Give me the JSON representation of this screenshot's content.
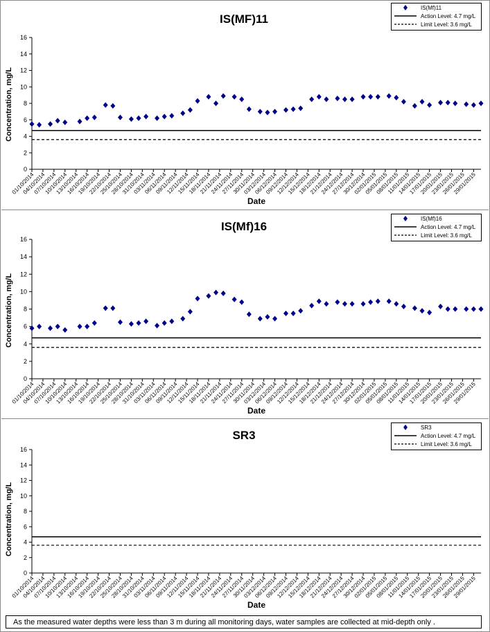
{
  "chart_data": [
    {
      "type": "scatter",
      "title": "IS(MF)11",
      "xlabel": "Date",
      "ylabel": "Concentration, mg/L",
      "ylim": [
        0,
        16
      ],
      "yticks": [
        0,
        2,
        4,
        6,
        8,
        10,
        12,
        14,
        16
      ],
      "xlim": [
        "2014-10-01",
        "2015-01-31"
      ],
      "xticks": [
        "01/10/2014",
        "04/10/2014",
        "07/10/2014",
        "10/10/2014",
        "13/10/2014",
        "16/10/2014",
        "19/10/2014",
        "22/10/2014",
        "25/10/2014",
        "28/10/2014",
        "31/10/2014",
        "03/11/2014",
        "06/11/2014",
        "09/11/2014",
        "12/11/2014",
        "15/11/2014",
        "18/11/2014",
        "21/11/2014",
        "24/11/2014",
        "27/11/2014",
        "30/11/2014",
        "03/12/2014",
        "06/12/2014",
        "09/12/2014",
        "12/12/2014",
        "15/12/2014",
        "18/12/2014",
        "21/12/2014",
        "24/12/2014",
        "27/12/2014",
        "30/12/2014",
        "02/01/2015",
        "05/01/2015",
        "08/01/2015",
        "11/01/2015",
        "14/01/2015",
        "17/01/2015",
        "20/01/2015",
        "23/01/2015",
        "26/01/2015",
        "29/01/2015"
      ],
      "grid": false,
      "legend_position": "top-right",
      "series": [
        {
          "name": "IS(Mf)11",
          "marker": "diamond",
          "color": "#00008B",
          "x": [
            "2014-10-01",
            "2014-10-03",
            "2014-10-06",
            "2014-10-08",
            "2014-10-10",
            "2014-10-14",
            "2014-10-16",
            "2014-10-18",
            "2014-10-21",
            "2014-10-23",
            "2014-10-25",
            "2014-10-28",
            "2014-10-30",
            "2014-11-01",
            "2014-11-04",
            "2014-11-06",
            "2014-11-08",
            "2014-11-11",
            "2014-11-13",
            "2014-11-15",
            "2014-11-18",
            "2014-11-20",
            "2014-11-22",
            "2014-11-25",
            "2014-11-27",
            "2014-11-29",
            "2014-12-02",
            "2014-12-04",
            "2014-12-06",
            "2014-12-09",
            "2014-12-11",
            "2014-12-13",
            "2014-12-16",
            "2014-12-18",
            "2014-12-20",
            "2014-12-23",
            "2014-12-25",
            "2014-12-27",
            "2014-12-30",
            "2015-01-01",
            "2015-01-03",
            "2015-01-06",
            "2015-01-08",
            "2015-01-10",
            "2015-01-13",
            "2015-01-15",
            "2015-01-17",
            "2015-01-20",
            "2015-01-22",
            "2015-01-24",
            "2015-01-27",
            "2015-01-29",
            "2015-01-31"
          ],
          "y": [
            5.5,
            5.4,
            5.5,
            5.9,
            5.7,
            5.8,
            6.2,
            6.3,
            7.8,
            7.7,
            6.3,
            6.1,
            6.2,
            6.4,
            6.2,
            6.4,
            6.5,
            6.8,
            7.2,
            8.3,
            8.8,
            8.0,
            8.9,
            8.8,
            8.5,
            7.3,
            7.0,
            6.9,
            7.0,
            7.2,
            7.3,
            7.4,
            8.5,
            8.8,
            8.5,
            8.6,
            8.5,
            8.5,
            8.8,
            8.8,
            8.8,
            8.9,
            8.7,
            8.2,
            7.7,
            8.2,
            7.8,
            8.1,
            8.1,
            8.0,
            7.9,
            7.8,
            8.0
          ]
        },
        {
          "name": "Action Level: 4.7 mg/L",
          "line": "solid",
          "value": 4.7
        },
        {
          "name": "Limit Level: 3.6 mg/L",
          "line": "dashed",
          "value": 3.6
        }
      ]
    },
    {
      "type": "scatter",
      "title": "IS(Mf)16",
      "xlabel": "Date",
      "ylabel": "Concentration, mg/L",
      "ylim": [
        0,
        16
      ],
      "yticks": [
        0,
        2,
        4,
        6,
        8,
        10,
        12,
        14,
        16
      ],
      "xlim": [
        "2014-10-01",
        "2015-01-31"
      ],
      "xticks": [
        "01/10/2014",
        "04/10/2014",
        "07/10/2014",
        "10/10/2014",
        "13/10/2014",
        "16/10/2014",
        "19/10/2014",
        "22/10/2014",
        "25/10/2014",
        "28/10/2014",
        "31/10/2014",
        "03/11/2014",
        "06/11/2014",
        "09/11/2014",
        "12/11/2014",
        "15/11/2014",
        "18/11/2014",
        "21/11/2014",
        "24/11/2014",
        "27/11/2014",
        "30/11/2014",
        "03/12/2014",
        "06/12/2014",
        "09/12/2014",
        "12/12/2014",
        "15/12/2014",
        "18/12/2014",
        "21/12/2014",
        "24/12/2014",
        "27/12/2014",
        "30/12/2014",
        "02/01/2015",
        "05/01/2015",
        "08/01/2015",
        "11/01/2015",
        "14/01/2015",
        "17/01/2015",
        "20/01/2015",
        "23/01/2015",
        "26/01/2015",
        "29/01/2015"
      ],
      "grid": false,
      "legend_position": "top-right",
      "series": [
        {
          "name": "IS(Mf)16",
          "marker": "diamond",
          "color": "#00008B",
          "x": [
            "2014-10-01",
            "2014-10-03",
            "2014-10-06",
            "2014-10-08",
            "2014-10-10",
            "2014-10-14",
            "2014-10-16",
            "2014-10-18",
            "2014-10-21",
            "2014-10-23",
            "2014-10-25",
            "2014-10-28",
            "2014-10-30",
            "2014-11-01",
            "2014-11-04",
            "2014-11-06",
            "2014-11-08",
            "2014-11-11",
            "2014-11-13",
            "2014-11-15",
            "2014-11-18",
            "2014-11-20",
            "2014-11-22",
            "2014-11-25",
            "2014-11-27",
            "2014-11-29",
            "2014-12-02",
            "2014-12-04",
            "2014-12-06",
            "2014-12-09",
            "2014-12-11",
            "2014-12-13",
            "2014-12-16",
            "2014-12-18",
            "2014-12-20",
            "2014-12-23",
            "2014-12-25",
            "2014-12-27",
            "2014-12-30",
            "2015-01-01",
            "2015-01-03",
            "2015-01-06",
            "2015-01-08",
            "2015-01-10",
            "2015-01-13",
            "2015-01-15",
            "2015-01-17",
            "2015-01-20",
            "2015-01-22",
            "2015-01-24",
            "2015-01-27",
            "2015-01-29",
            "2015-01-31"
          ],
          "y": [
            5.8,
            6.0,
            5.8,
            6.0,
            5.6,
            6.0,
            6.0,
            6.4,
            8.1,
            8.1,
            6.5,
            6.3,
            6.4,
            6.6,
            6.1,
            6.4,
            6.6,
            6.9,
            7.7,
            9.2,
            9.5,
            9.9,
            9.8,
            9.1,
            8.8,
            7.4,
            6.9,
            7.1,
            6.9,
            7.5,
            7.5,
            7.8,
            8.4,
            8.9,
            8.6,
            8.8,
            8.6,
            8.6,
            8.6,
            8.8,
            8.9,
            8.9,
            8.6,
            8.3,
            8.1,
            7.8,
            7.6,
            8.3,
            8.0,
            8.0,
            8.0,
            8.0,
            8.0
          ]
        },
        {
          "name": "Action Level: 4.7 mg/L",
          "line": "solid",
          "value": 4.7
        },
        {
          "name": "Limit Level: 3.6 mg/L",
          "line": "dashed",
          "value": 3.6
        }
      ]
    },
    {
      "type": "scatter",
      "title": "SR3",
      "xlabel": "Date",
      "ylabel": "Concentration, mg/L",
      "ylim": [
        0,
        16
      ],
      "yticks": [
        0,
        2,
        4,
        6,
        8,
        10,
        12,
        14,
        16
      ],
      "xlim": [
        "2014-10-01",
        "2015-01-31"
      ],
      "xticks": [
        "01/10/2014",
        "04/10/2014",
        "07/10/2014",
        "10/10/2014",
        "13/10/2014",
        "16/10/2014",
        "19/10/2014",
        "22/10/2014",
        "25/10/2014",
        "28/10/2014",
        "31/10/2014",
        "03/11/2014",
        "06/11/2014",
        "09/11/2014",
        "12/11/2014",
        "15/11/2014",
        "18/11/2014",
        "21/11/2014",
        "24/11/2014",
        "27/11/2014",
        "30/11/2014",
        "03/12/2014",
        "06/12/2014",
        "09/12/2014",
        "12/12/2014",
        "15/12/2014",
        "18/12/2014",
        "21/12/2014",
        "24/12/2014",
        "27/12/2014",
        "30/12/2014",
        "02/01/2015",
        "05/01/2015",
        "08/01/2015",
        "11/01/2015",
        "14/01/2015",
        "17/01/2015",
        "20/01/2015",
        "23/01/2015",
        "26/01/2015",
        "29/01/2015"
      ],
      "grid": false,
      "legend_position": "top-right",
      "series": [
        {
          "name": "SR3",
          "marker": "diamond",
          "color": "#00008B",
          "x": [],
          "y": []
        },
        {
          "name": "Action Level: 4.7 mg/L",
          "line": "solid",
          "value": 4.7
        },
        {
          "name": "Limit Level: 3.6 mg/L",
          "line": "dashed",
          "value": 3.6
        }
      ]
    }
  ],
  "footnote": "As the measured water depths were less than 3 m during all monitoring days, water samples are collected  at mid-depth only ."
}
